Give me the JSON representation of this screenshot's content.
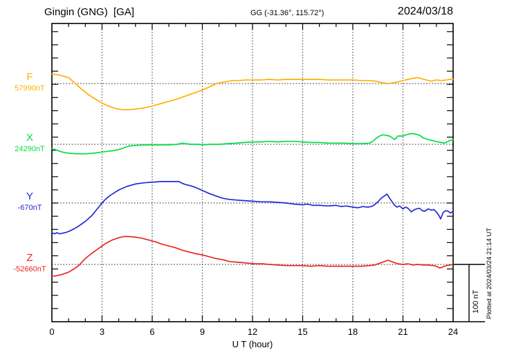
{
  "header": {
    "station": "Gingin (GNG)  [GA]",
    "coordinates": "GG (-31.36°, 115.72°)",
    "date": "2024/03/18"
  },
  "footer_note": "Plotted at 2024/03/24 21:14 UT",
  "chart_data": {
    "type": "line",
    "title": "Gingin (GNG) [GA] magnetogram, 2024/03/18",
    "xlabel": "U T (hour)",
    "xlim": [
      0,
      24
    ],
    "x_ticks": [
      "0",
      "3",
      "6",
      "9",
      "12",
      "15",
      "18",
      "21",
      "24"
    ],
    "x_tick_hours": [
      0,
      3,
      6,
      9,
      12,
      15,
      18,
      21,
      24
    ],
    "grid": {
      "vertical_dotted_every_hours": 3,
      "horizontal_dotted_at_baselines": true
    },
    "scale_bar": {
      "label": "100 nT",
      "span_nT": 100
    },
    "y_unit": "nT offset from each component baseline",
    "series": [
      {
        "name": "F",
        "baseline_label": "57990nT",
        "baseline_value_nT": 57990,
        "color": "#FFAE00",
        "points": [
          [
            0,
            16
          ],
          [
            0.3,
            15
          ],
          [
            0.6,
            13
          ],
          [
            1,
            10
          ],
          [
            1.4,
            0
          ],
          [
            1.8,
            -10
          ],
          [
            2.2,
            -19
          ],
          [
            2.6,
            -26
          ],
          [
            3,
            -33
          ],
          [
            3.4,
            -38
          ],
          [
            3.8,
            -42
          ],
          [
            4.2,
            -44
          ],
          [
            4.6,
            -44
          ],
          [
            5,
            -43
          ],
          [
            5.5,
            -41
          ],
          [
            6,
            -38
          ],
          [
            6.5,
            -34
          ],
          [
            7,
            -30
          ],
          [
            7.5,
            -26
          ],
          [
            8,
            -21
          ],
          [
            8.5,
            -16
          ],
          [
            9,
            -11
          ],
          [
            9.4,
            -6
          ],
          [
            9.7,
            -2
          ],
          [
            10,
            1
          ],
          [
            10.4,
            3
          ],
          [
            10.8,
            5
          ],
          [
            11.2,
            5
          ],
          [
            11.6,
            6
          ],
          [
            12,
            6
          ],
          [
            12.5,
            6
          ],
          [
            13,
            7
          ],
          [
            13.5,
            6
          ],
          [
            14,
            7
          ],
          [
            14.5,
            7
          ],
          [
            15,
            7
          ],
          [
            15.5,
            7
          ],
          [
            16,
            7
          ],
          [
            16.5,
            6
          ],
          [
            17,
            6
          ],
          [
            17.5,
            6
          ],
          [
            18,
            6
          ],
          [
            18.5,
            5
          ],
          [
            19,
            5
          ],
          [
            19.4,
            4
          ],
          [
            19.8,
            1
          ],
          [
            20.1,
            0
          ],
          [
            20.4,
            1
          ],
          [
            20.7,
            3
          ],
          [
            21,
            5
          ],
          [
            21.3,
            7
          ],
          [
            21.6,
            9
          ],
          [
            21.9,
            10
          ],
          [
            22.1,
            8
          ],
          [
            22.4,
            6
          ],
          [
            22.7,
            4
          ],
          [
            23,
            6
          ],
          [
            23.3,
            5
          ],
          [
            23.6,
            6
          ],
          [
            23.8,
            7
          ],
          [
            24,
            7
          ]
        ]
      },
      {
        "name": "X",
        "baseline_label": "24290nT",
        "baseline_value_nT": 24290,
        "color": "#00DD44",
        "points": [
          [
            0,
            -7
          ],
          [
            0.3,
            -10
          ],
          [
            0.6,
            -13
          ],
          [
            1,
            -15
          ],
          [
            1.5,
            -16
          ],
          [
            2,
            -16
          ],
          [
            2.5,
            -15
          ],
          [
            3,
            -13
          ],
          [
            3.3,
            -12
          ],
          [
            3.6,
            -11
          ],
          [
            4,
            -9
          ],
          [
            4.3,
            -6
          ],
          [
            4.6,
            -3
          ],
          [
            5,
            -2
          ],
          [
            5.5,
            -1
          ],
          [
            6,
            -1
          ],
          [
            6.5,
            -1
          ],
          [
            7,
            -1
          ],
          [
            7.5,
            0
          ],
          [
            7.8,
            2
          ],
          [
            8,
            1
          ],
          [
            8.3,
            0
          ],
          [
            8.7,
            0
          ],
          [
            9,
            -1
          ],
          [
            9.5,
            0
          ],
          [
            10,
            0
          ],
          [
            10.5,
            1
          ],
          [
            11,
            2
          ],
          [
            11.5,
            3
          ],
          [
            12,
            4
          ],
          [
            12.5,
            4
          ],
          [
            13,
            5
          ],
          [
            13.5,
            4
          ],
          [
            14,
            5
          ],
          [
            14.5,
            5
          ],
          [
            15,
            4
          ],
          [
            15.5,
            3
          ],
          [
            16,
            3
          ],
          [
            16.5,
            2
          ],
          [
            17,
            2
          ],
          [
            17.5,
            2
          ],
          [
            18,
            1
          ],
          [
            18.5,
            1
          ],
          [
            19,
            2
          ],
          [
            19.2,
            5
          ],
          [
            19.4,
            10
          ],
          [
            19.6,
            14
          ],
          [
            19.8,
            16
          ],
          [
            20,
            15
          ],
          [
            20.2,
            14
          ],
          [
            20.4,
            10
          ],
          [
            20.5,
            8
          ],
          [
            20.7,
            14
          ],
          [
            21,
            14
          ],
          [
            21.2,
            16
          ],
          [
            21.5,
            18
          ],
          [
            21.8,
            17
          ],
          [
            22,
            15
          ],
          [
            22.2,
            11
          ],
          [
            22.5,
            8
          ],
          [
            22.8,
            6
          ],
          [
            23.1,
            4
          ],
          [
            23.3,
            3
          ],
          [
            23.5,
            2
          ],
          [
            23.7,
            5
          ],
          [
            23.9,
            7
          ],
          [
            24,
            8
          ]
        ]
      },
      {
        "name": "Y",
        "baseline_label": "-670nT",
        "baseline_value_nT": -670,
        "color": "#2328D2",
        "points": [
          [
            0,
            -50
          ],
          [
            0.15,
            -52
          ],
          [
            0.3,
            -50
          ],
          [
            0.45,
            -52
          ],
          [
            0.6,
            -51
          ],
          [
            0.8,
            -50
          ],
          [
            1,
            -48
          ],
          [
            1.3,
            -44
          ],
          [
            1.6,
            -39
          ],
          [
            2,
            -31
          ],
          [
            2.4,
            -21
          ],
          [
            2.6,
            -14
          ],
          [
            2.8,
            -7
          ],
          [
            3,
            0
          ],
          [
            3.2,
            6
          ],
          [
            3.5,
            13
          ],
          [
            4,
            22
          ],
          [
            4.5,
            28
          ],
          [
            5,
            32
          ],
          [
            5.5,
            34
          ],
          [
            6,
            35
          ],
          [
            6.5,
            36
          ],
          [
            7,
            36
          ],
          [
            7.3,
            36
          ],
          [
            7.6,
            36
          ],
          [
            7.8,
            33
          ],
          [
            8,
            31
          ],
          [
            8.3,
            29
          ],
          [
            8.6,
            26
          ],
          [
            9,
            21
          ],
          [
            9.4,
            16
          ],
          [
            9.8,
            12
          ],
          [
            10.2,
            8
          ],
          [
            10.6,
            6
          ],
          [
            11,
            5
          ],
          [
            11.5,
            4
          ],
          [
            12,
            3
          ],
          [
            12.5,
            2
          ],
          [
            13,
            2
          ],
          [
            13.5,
            1
          ],
          [
            14,
            0
          ],
          [
            14.5,
            -2
          ],
          [
            15,
            -3
          ],
          [
            15.3,
            -2
          ],
          [
            15.6,
            -4
          ],
          [
            16,
            -4
          ],
          [
            16.5,
            -5
          ],
          [
            17,
            -4
          ],
          [
            17.3,
            -6
          ],
          [
            17.6,
            -5
          ],
          [
            18,
            -7
          ],
          [
            18.3,
            -8
          ],
          [
            18.6,
            -6
          ],
          [
            18.9,
            -7
          ],
          [
            19.1,
            -6
          ],
          [
            19.3,
            -3
          ],
          [
            19.5,
            2
          ],
          [
            19.7,
            8
          ],
          [
            19.9,
            12
          ],
          [
            20.05,
            15
          ],
          [
            20.2,
            8
          ],
          [
            20.35,
            2
          ],
          [
            20.5,
            -4
          ],
          [
            20.65,
            -7
          ],
          [
            20.8,
            -5
          ],
          [
            21,
            -10
          ],
          [
            21.15,
            -7
          ],
          [
            21.3,
            -9
          ],
          [
            21.5,
            -15
          ],
          [
            21.65,
            -12
          ],
          [
            21.8,
            -10
          ],
          [
            22,
            -9
          ],
          [
            22.15,
            -13
          ],
          [
            22.3,
            -14
          ],
          [
            22.5,
            -10
          ],
          [
            22.7,
            -12
          ],
          [
            22.85,
            -11
          ],
          [
            23,
            -15
          ],
          [
            23.15,
            -21
          ],
          [
            23.25,
            -27
          ],
          [
            23.4,
            -16
          ],
          [
            23.55,
            -13
          ],
          [
            23.7,
            -14
          ],
          [
            23.85,
            -17
          ],
          [
            24,
            -14
          ]
        ]
      },
      {
        "name": "Z",
        "baseline_label": "-52660nT",
        "baseline_value_nT": -52660,
        "color": "#EE2222",
        "points": [
          [
            0,
            -20
          ],
          [
            0.3,
            -19
          ],
          [
            0.6,
            -17
          ],
          [
            1,
            -13
          ],
          [
            1.3,
            -8
          ],
          [
            1.6,
            -2
          ],
          [
            2,
            10
          ],
          [
            2.4,
            19
          ],
          [
            2.8,
            27
          ],
          [
            3.2,
            35
          ],
          [
            3.6,
            41
          ],
          [
            4,
            45
          ],
          [
            4.3,
            47
          ],
          [
            4.6,
            47
          ],
          [
            5,
            46
          ],
          [
            5.4,
            44
          ],
          [
            5.8,
            41
          ],
          [
            6.2,
            38
          ],
          [
            6.6,
            34
          ],
          [
            7,
            31
          ],
          [
            7.4,
            28
          ],
          [
            7.8,
            24
          ],
          [
            8.2,
            21
          ],
          [
            8.6,
            18
          ],
          [
            9,
            16
          ],
          [
            9.4,
            13
          ],
          [
            9.8,
            10
          ],
          [
            10.2,
            8
          ],
          [
            10.6,
            5
          ],
          [
            11,
            4
          ],
          [
            11.4,
            3
          ],
          [
            11.8,
            2
          ],
          [
            12.2,
            1
          ],
          [
            12.6,
            1
          ],
          [
            13,
            0
          ],
          [
            13.5,
            -1
          ],
          [
            14,
            -2
          ],
          [
            14.5,
            -2
          ],
          [
            15,
            -2
          ],
          [
            15.5,
            -3
          ],
          [
            16,
            -2
          ],
          [
            16.5,
            -3
          ],
          [
            17,
            -3
          ],
          [
            17.5,
            -3
          ],
          [
            18,
            -3
          ],
          [
            18.5,
            -3
          ],
          [
            19,
            -2
          ],
          [
            19.3,
            -1
          ],
          [
            19.6,
            2
          ],
          [
            19.9,
            5
          ],
          [
            20.1,
            7
          ],
          [
            20.3,
            5
          ],
          [
            20.5,
            3
          ],
          [
            20.7,
            1
          ],
          [
            21,
            0
          ],
          [
            21.3,
            1
          ],
          [
            21.6,
            -1
          ],
          [
            21.9,
            0
          ],
          [
            22.2,
            -1
          ],
          [
            22.5,
            -1
          ],
          [
            22.8,
            -2
          ],
          [
            23,
            -3
          ],
          [
            23.2,
            -6
          ],
          [
            23.4,
            -4
          ],
          [
            23.6,
            -2
          ],
          [
            23.8,
            -1
          ],
          [
            24,
            0
          ]
        ]
      }
    ]
  }
}
